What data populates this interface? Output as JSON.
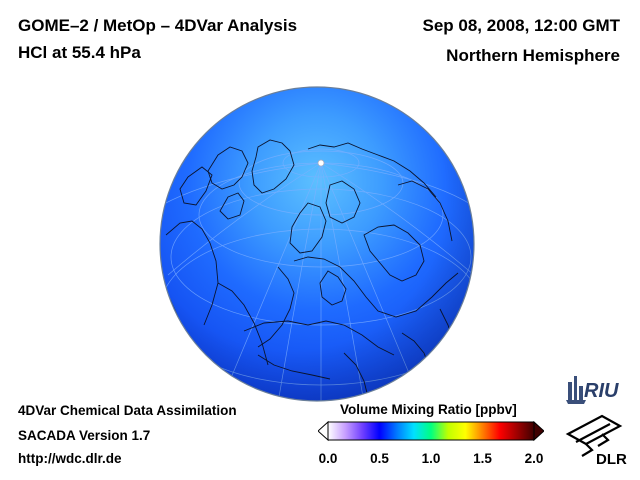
{
  "header": {
    "title": "GOME–2 / MetOp – 4DVar Analysis",
    "subtitle": "HCl at 55.4 hPa",
    "date": "Sep 08, 2008, 12:00 GMT",
    "region": "Northern Hemisphere"
  },
  "footer": {
    "line1": "4DVar Chemical Data Assimilation",
    "line2": "SACADA Version 1.7",
    "line3": "http://wdc.dlr.de"
  },
  "colorbar": {
    "title": "Volume Mixing Ratio [ppbv]",
    "ticks": [
      "0.0",
      "0.5",
      "1.0",
      "1.5",
      "2.0"
    ],
    "range": [
      0.0,
      2.0
    ],
    "colors": [
      "#ffffff",
      "#c8a0ff",
      "#7040ff",
      "#0000ff",
      "#0078ff",
      "#00e0ff",
      "#00ff80",
      "#c0ff00",
      "#ffff00",
      "#ff8000",
      "#ff0000",
      "#a00000",
      "#400000"
    ]
  },
  "map": {
    "projection": "orthographic",
    "field_color_polar": "#3fa6ff",
    "field_color_mid": "#1f6bff",
    "field_color_low": "#0f46f0"
  },
  "logos": {
    "riu": "RIU",
    "dlr": "DLR"
  }
}
